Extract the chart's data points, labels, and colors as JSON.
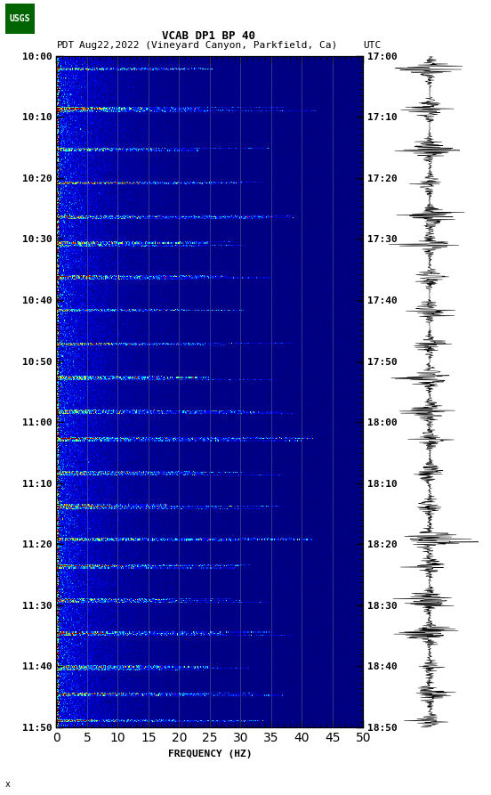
{
  "title_line1": "VCAB DP1 BP 40",
  "title_line2_pdt": "PDT",
  "title_line2_date": "Aug22,2022 (Vineyard Canyon, Parkfield, Ca)",
  "title_line2_utc": "UTC",
  "xlabel": "FREQUENCY (HZ)",
  "freq_min": 0,
  "freq_max": 50,
  "freq_ticks": [
    0,
    5,
    10,
    15,
    20,
    25,
    30,
    35,
    40,
    45,
    50
  ],
  "time_labels_left": [
    "10:00",
    "10:10",
    "10:20",
    "10:30",
    "10:40",
    "10:50",
    "11:00",
    "11:10",
    "11:20",
    "11:30",
    "11:40",
    "11:50"
  ],
  "time_labels_right": [
    "17:00",
    "17:10",
    "17:20",
    "17:30",
    "17:40",
    "17:50",
    "18:00",
    "18:10",
    "18:20",
    "18:30",
    "18:40",
    "18:50"
  ],
  "background_color": "#ffffff",
  "figsize": [
    5.52,
    8.93
  ],
  "dpi": 100,
  "vertical_line_freqs": [
    5,
    10,
    15,
    20,
    25,
    30,
    35,
    40,
    45
  ],
  "vertical_line_color": "#888888",
  "usgs_logo_color": "#006400",
  "n_time": 660,
  "n_freq": 500
}
